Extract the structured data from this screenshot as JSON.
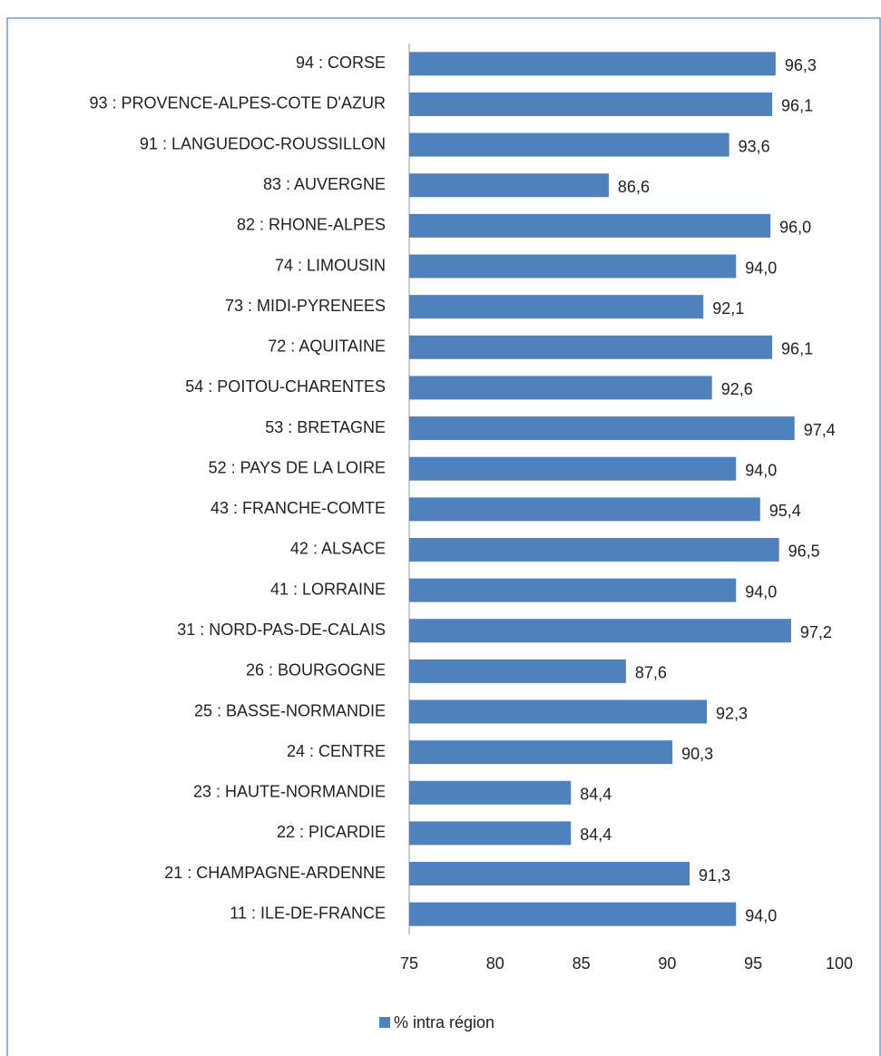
{
  "chart_data": {
    "type": "hbar",
    "categories": [
      "94 : CORSE",
      "93 : PROVENCE-ALPES-COTE D'AZUR",
      "91 : LANGUEDOC-ROUSSILLON",
      "83 : AUVERGNE",
      "82 : RHONE-ALPES",
      "74 : LIMOUSIN",
      "73 : MIDI-PYRENEES",
      "72 : AQUITAINE",
      "54 : POITOU-CHARENTES",
      "53 : BRETAGNE",
      "52 : PAYS DE LA LOIRE",
      "43 : FRANCHE-COMTE",
      "42 : ALSACE",
      "41 : LORRAINE",
      "31 : NORD-PAS-DE-CALAIS",
      "26 : BOURGOGNE",
      "25 : BASSE-NORMANDIE",
      "24 : CENTRE",
      "23 : HAUTE-NORMANDIE",
      "22 : PICARDIE",
      "21 : CHAMPAGNE-ARDENNE",
      "11 : ILE-DE-FRANCE"
    ],
    "series": [
      {
        "name": "% intra région",
        "color": "#4f81bd",
        "values": [
          96.3,
          96.1,
          93.6,
          86.6,
          96.0,
          94.0,
          92.1,
          96.1,
          92.6,
          97.4,
          94.0,
          95.4,
          96.5,
          94.0,
          97.2,
          87.6,
          92.3,
          90.3,
          84.4,
          84.4,
          91.3,
          94.0
        ],
        "value_labels": [
          "96,3",
          "96,1",
          "93,6",
          "86,6",
          "96,0",
          "94,0",
          "92,1",
          "96,1",
          "92,6",
          "97,4",
          "94,0",
          "95,4",
          "96,5",
          "94,0",
          "97,2",
          "87,6",
          "92,3",
          "90,3",
          "84,4",
          "84,4",
          "91,3",
          "94,0"
        ]
      }
    ],
    "xlim": [
      75,
      100
    ],
    "xticks": [
      75,
      80,
      85,
      90,
      95,
      100
    ],
    "legend": "bottom"
  }
}
